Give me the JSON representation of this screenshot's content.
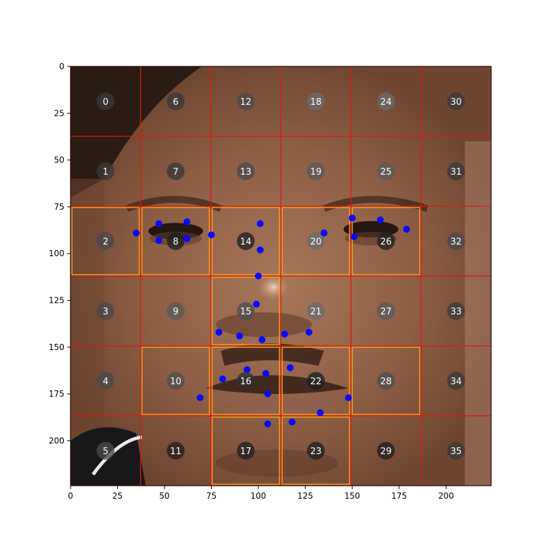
{
  "chart_data": {
    "type": "scatter",
    "title": "",
    "xlabel": "",
    "ylabel": "",
    "xlim": [
      0,
      224
    ],
    "ylim": [
      224,
      0
    ],
    "image_extent": [
      0,
      224,
      224,
      0
    ],
    "x_ticks": [
      0,
      25,
      50,
      75,
      100,
      125,
      150,
      175,
      200
    ],
    "y_ticks": [
      0,
      25,
      50,
      75,
      100,
      125,
      150,
      175,
      200
    ],
    "grid": {
      "cols": 6,
      "rows": 6,
      "cell_size": 37.33,
      "line_color": "#e0190f"
    },
    "highlighted_cells": [
      2,
      8,
      14,
      20,
      26,
      10,
      16,
      22,
      28,
      15,
      17,
      23
    ],
    "highlight_color": "#f0a020",
    "cell_labels": [
      {
        "id": 0,
        "label": "0",
        "shade": "#3a3a3a"
      },
      {
        "id": 1,
        "label": "1",
        "shade": "#3a3a3a"
      },
      {
        "id": 2,
        "label": "2",
        "shade": "#4a4a4a"
      },
      {
        "id": 3,
        "label": "3",
        "shade": "#4a4a4a"
      },
      {
        "id": 4,
        "label": "4",
        "shade": "#4a4a4a"
      },
      {
        "id": 5,
        "label": "5",
        "shade": "#4a4a4a"
      },
      {
        "id": 6,
        "label": "6",
        "shade": "#3a3a3a"
      },
      {
        "id": 7,
        "label": "7",
        "shade": "#3a3a3a"
      },
      {
        "id": 8,
        "label": "8",
        "shade": "#202020"
      },
      {
        "id": 9,
        "label": "9",
        "shade": "#5a5a5a"
      },
      {
        "id": 10,
        "label": "10",
        "shade": "#505050"
      },
      {
        "id": 11,
        "label": "11",
        "shade": "#202020"
      },
      {
        "id": 12,
        "label": "12",
        "shade": "#4a4a4a"
      },
      {
        "id": 13,
        "label": "13",
        "shade": "#4a4a4a"
      },
      {
        "id": 14,
        "label": "14",
        "shade": "#202020"
      },
      {
        "id": 15,
        "label": "15",
        "shade": "#505050"
      },
      {
        "id": 16,
        "label": "16",
        "shade": "#303030"
      },
      {
        "id": 17,
        "label": "17",
        "shade": "#202020"
      },
      {
        "id": 18,
        "label": "18",
        "shade": "#6a6a6a"
      },
      {
        "id": 19,
        "label": "19",
        "shade": "#5a5a5a"
      },
      {
        "id": 20,
        "label": "20",
        "shade": "#6a6a6a"
      },
      {
        "id": 21,
        "label": "21",
        "shade": "#6a6a6a"
      },
      {
        "id": 22,
        "label": "22",
        "shade": "#202020"
      },
      {
        "id": 23,
        "label": "23",
        "shade": "#202020"
      },
      {
        "id": 24,
        "label": "24",
        "shade": "#6a6a6a"
      },
      {
        "id": 25,
        "label": "25",
        "shade": "#5a5a5a"
      },
      {
        "id": 26,
        "label": "26",
        "shade": "#202020"
      },
      {
        "id": 27,
        "label": "27",
        "shade": "#5a5a5a"
      },
      {
        "id": 28,
        "label": "28",
        "shade": "#505050"
      },
      {
        "id": 29,
        "label": "29",
        "shade": "#202020"
      },
      {
        "id": 30,
        "label": "30",
        "shade": "#3a3a3a"
      },
      {
        "id": 31,
        "label": "31",
        "shade": "#3a3a3a"
      },
      {
        "id": 32,
        "label": "32",
        "shade": "#4a4a4a"
      },
      {
        "id": 33,
        "label": "33",
        "shade": "#3a3a3a"
      },
      {
        "id": 34,
        "label": "34",
        "shade": "#3a3a3a"
      },
      {
        "id": 35,
        "label": "35",
        "shade": "#3a3a3a"
      }
    ],
    "landmarks": {
      "color": "#0a0aff",
      "points": [
        [
          35,
          89
        ],
        [
          47,
          84
        ],
        [
          47,
          93
        ],
        [
          62,
          83
        ],
        [
          62,
          92
        ],
        [
          75,
          90
        ],
        [
          101,
          84
        ],
        [
          101,
          98
        ],
        [
          100,
          112
        ],
        [
          99,
          127
        ],
        [
          79,
          142
        ],
        [
          90,
          144
        ],
        [
          102,
          146
        ],
        [
          114,
          143
        ],
        [
          127,
          142
        ],
        [
          135,
          89
        ],
        [
          150,
          81
        ],
        [
          151,
          91
        ],
        [
          165,
          82
        ],
        [
          179,
          87
        ],
        [
          94,
          162
        ],
        [
          104,
          164
        ],
        [
          117,
          161
        ],
        [
          81,
          167
        ],
        [
          69,
          177
        ],
        [
          105,
          175
        ],
        [
          148,
          177
        ],
        [
          133,
          185
        ],
        [
          105,
          191
        ],
        [
          118,
          190
        ]
      ]
    },
    "face_palette": {
      "skin_dark": "#6e4630",
      "skin_mid": "#8c5e44",
      "skin_light": "#a8775a",
      "hair": "#1e140e",
      "shirt": "#18181a"
    }
  }
}
